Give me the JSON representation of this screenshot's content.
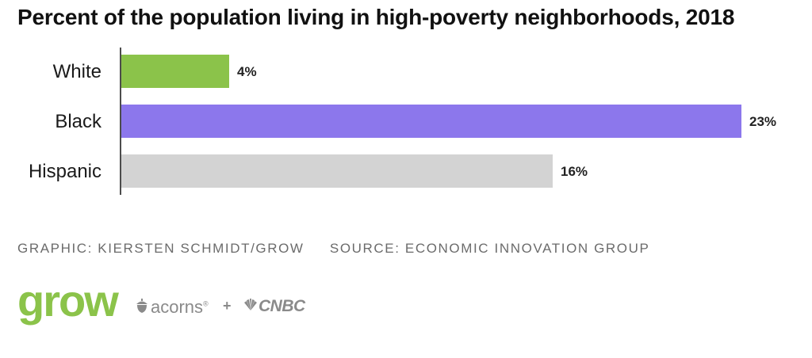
{
  "chart_data": {
    "type": "bar",
    "orientation": "horizontal",
    "title": "Percent of the population living in high-poverty neighborhoods, 2018",
    "categories": [
      "White",
      "Black",
      "Hispanic"
    ],
    "values": [
      4,
      23,
      16
    ],
    "value_labels": [
      "4%",
      "23%",
      "16%"
    ],
    "colors": [
      "#8bc34a",
      "#8c77ec",
      "#d3d3d3"
    ],
    "xlim": [
      0,
      23
    ],
    "grid": false
  },
  "credits": {
    "graphic": "GRAPHIC: KIERSTEN SCHMIDT/GROW",
    "source": "SOURCE: ECONOMIC INNOVATION GROUP"
  },
  "logos": {
    "grow": "grow",
    "acorns": "acorns",
    "acorns_mark": "®",
    "plus": "+",
    "cnbc": "CNBC",
    "icons": [
      "acorn-icon",
      "peacock-icon"
    ],
    "brand_color": "#8bc34a",
    "muted_color": "#8a8a8a"
  }
}
